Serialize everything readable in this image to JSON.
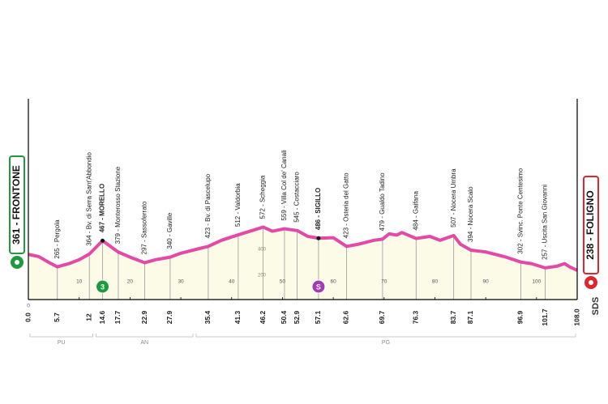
{
  "chart_data": {
    "type": "profile",
    "start": {
      "km": {
        "value": 0,
        "label": "0.0"
      },
      "label": "361 - FRONTONE",
      "color": "#1e9a3e"
    },
    "finish": {
      "km": {
        "value": 108,
        "label": "108.0"
      },
      "label": "238 - FOLIGNO",
      "color": "#e0262b"
    },
    "waypoints": [
      {
        "km": 5.7,
        "label": "265 - Pergola"
      },
      {
        "km": 12.0,
        "label": "364 - Bv. di Serra Sant'Abbondio"
      },
      {
        "km": 14.6,
        "label": "467 - MORELLO",
        "bold": true
      },
      {
        "km": 17.7,
        "label": "379 - Monterosso Stazione"
      },
      {
        "km": 22.9,
        "label": "297 - Sassoferrato"
      },
      {
        "km": 27.9,
        "label": "340 - Gaville"
      },
      {
        "km": 35.4,
        "label": "423 - Bv. di Pascelupo"
      },
      {
        "km": 41.3,
        "label": "512 - Valdorbia"
      },
      {
        "km": 46.2,
        "label": "572 - Scheggia"
      },
      {
        "km": 50.4,
        "label": "559 - Villa Col de' Canali"
      },
      {
        "km": 52.9,
        "label": "545 - Costacciaro"
      },
      {
        "km": 57.1,
        "label": "486 - SIGILLO",
        "bold": true
      },
      {
        "km": 62.6,
        "label": "423 - Osteria del Gatto"
      },
      {
        "km": 69.7,
        "label": "479 - Gualdo Tadino"
      },
      {
        "km": 76.3,
        "label": "484 - Gaifana"
      },
      {
        "km": 83.7,
        "label": "507 - Nocera Umbra"
      },
      {
        "km": 87.1,
        "label": "394 - Nocera Scalo"
      },
      {
        "km": 96.9,
        "label": "302 - Svinc. Ponte Centesimo"
      },
      {
        "km": 101.7,
        "label": "257 - Uscita San Giovanni"
      }
    ],
    "profile": {
      "color": "#e24aa6",
      "x": [
        0,
        2,
        4,
        5.7,
        8,
        10,
        12,
        14.6,
        17.7,
        20,
        22.9,
        25,
        27.9,
        30,
        33,
        35.4,
        38,
        41.3,
        44,
        46.2,
        48,
        50.4,
        52.9,
        55,
        57.1,
        60,
        62.6,
        65,
        68,
        69.7,
        71,
        72.5,
        73.5,
        76.3,
        79,
        81,
        83.7,
        85,
        87.1,
        90,
        94,
        96.9,
        99,
        101.7,
        104,
        105.5,
        106.5,
        108
      ],
      "values": [
        361,
        345,
        300,
        265,
        290,
        320,
        364,
        467,
        379,
        340,
        297,
        320,
        340,
        370,
        400,
        423,
        470,
        512,
        545,
        572,
        540,
        559,
        545,
        500,
        486,
        490,
        423,
        440,
        470,
        479,
        520,
        510,
        530,
        484,
        500,
        470,
        507,
        440,
        394,
        380,
        340,
        302,
        290,
        257,
        270,
        290,
        265,
        238
      ]
    },
    "badges": [
      {
        "km": 14.6,
        "label": "3",
        "color": "#1e9a3e"
      },
      {
        "km": 57.1,
        "label": "S",
        "color": "#a43bb5"
      }
    ],
    "regions": [
      {
        "name": "PU",
        "from": 0,
        "to": 13
      },
      {
        "name": "AN",
        "from": 13,
        "to": 32.7
      },
      {
        "name": "PG",
        "from": 32.7,
        "to": 108
      }
    ],
    "xlim": [
      0,
      108
    ],
    "xticks": [
      0,
      10,
      20,
      30,
      40,
      50,
      60,
      70,
      80,
      90,
      100
    ],
    "ylim": [
      0,
      1500
    ],
    "yticks": [
      200,
      400
    ]
  }
}
